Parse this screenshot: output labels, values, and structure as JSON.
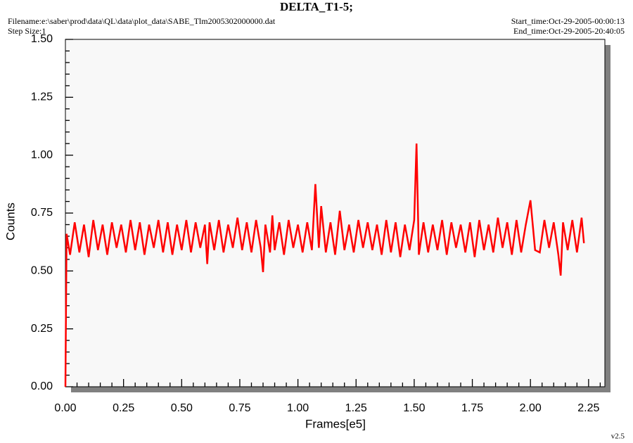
{
  "chart_data": {
    "type": "line",
    "title": "DELTA_T1-5;",
    "filename": "Filename:e:\\saber\\prod\\data\\QL\\data\\plot_data\\SABE_Tlm2005302000000.dat",
    "step_size": "Step Size:1",
    "start_time": "Start_time:Oct-29-2005-00:00:13",
    "end_time": "End_time:Oct-29-2005-20:40:05",
    "version": "v2.5",
    "xlabel": "Frames[e5]",
    "ylabel": "Counts",
    "xlim": [
      0,
      2.32
    ],
    "ylim": [
      0,
      1.5
    ],
    "xticks": [
      {
        "value": 0,
        "label": "0.00"
      },
      {
        "value": 0.25,
        "label": "0.25"
      },
      {
        "value": 0.5,
        "label": "0.50"
      },
      {
        "value": 0.75,
        "label": "0.75"
      },
      {
        "value": 1,
        "label": "1.00"
      },
      {
        "value": 1.25,
        "label": "1.25"
      },
      {
        "value": 1.5,
        "label": "1.50"
      },
      {
        "value": 1.75,
        "label": "1.75"
      },
      {
        "value": 2,
        "label": "2.00"
      },
      {
        "value": 2.25,
        "label": "2.25"
      }
    ],
    "yticks": [
      {
        "value": 0,
        "label": "0.00"
      },
      {
        "value": 0.25,
        "label": "0.25"
      },
      {
        "value": 0.5,
        "label": "0.50"
      },
      {
        "value": 0.75,
        "label": "0.75"
      },
      {
        "value": 1,
        "label": "1.00"
      },
      {
        "value": 1.25,
        "label": "1.25"
      },
      {
        "value": 1.5,
        "label": "1.50"
      }
    ],
    "color": "#ff0000",
    "x": [
      0,
      0.005,
      0.02,
      0.04,
      0.06,
      0.08,
      0.1,
      0.12,
      0.14,
      0.16,
      0.18,
      0.2,
      0.22,
      0.24,
      0.26,
      0.28,
      0.3,
      0.32,
      0.34,
      0.36,
      0.38,
      0.4,
      0.42,
      0.44,
      0.46,
      0.48,
      0.5,
      0.52,
      0.54,
      0.56,
      0.58,
      0.6,
      0.61,
      0.62,
      0.64,
      0.66,
      0.68,
      0.7,
      0.72,
      0.74,
      0.76,
      0.78,
      0.8,
      0.82,
      0.84,
      0.85,
      0.86,
      0.88,
      0.89,
      0.9,
      0.92,
      0.94,
      0.96,
      0.98,
      1.0,
      1.02,
      1.04,
      1.06,
      1.075,
      1.09,
      1.1,
      1.12,
      1.14,
      1.16,
      1.18,
      1.2,
      1.22,
      1.24,
      1.26,
      1.28,
      1.3,
      1.32,
      1.34,
      1.36,
      1.38,
      1.4,
      1.42,
      1.44,
      1.46,
      1.48,
      1.5,
      1.51,
      1.52,
      1.54,
      1.56,
      1.58,
      1.6,
      1.62,
      1.64,
      1.66,
      1.68,
      1.7,
      1.72,
      1.74,
      1.76,
      1.78,
      1.8,
      1.82,
      1.84,
      1.86,
      1.88,
      1.9,
      1.92,
      1.94,
      1.96,
      1.98,
      2.0,
      2.02,
      2.04,
      2.06,
      2.08,
      2.1,
      2.12,
      2.13,
      2.14,
      2.16,
      2.18,
      2.2,
      2.22,
      2.23
    ],
    "values": [
      0,
      0.66,
      0.57,
      0.71,
      0.58,
      0.7,
      0.56,
      0.72,
      0.59,
      0.7,
      0.57,
      0.71,
      0.6,
      0.7,
      0.58,
      0.72,
      0.59,
      0.71,
      0.57,
      0.7,
      0.6,
      0.72,
      0.58,
      0.71,
      0.57,
      0.7,
      0.59,
      0.72,
      0.58,
      0.71,
      0.6,
      0.7,
      0.53,
      0.71,
      0.59,
      0.72,
      0.58,
      0.7,
      0.6,
      0.73,
      0.59,
      0.71,
      0.58,
      0.72,
      0.6,
      0.495,
      0.7,
      0.58,
      0.74,
      0.59,
      0.71,
      0.57,
      0.72,
      0.6,
      0.7,
      0.58,
      0.71,
      0.59,
      0.875,
      0.6,
      0.78,
      0.58,
      0.71,
      0.57,
      0.76,
      0.59,
      0.7,
      0.58,
      0.72,
      0.6,
      0.71,
      0.59,
      0.7,
      0.57,
      0.72,
      0.58,
      0.71,
      0.56,
      0.7,
      0.59,
      0.72,
      1.05,
      0.57,
      0.71,
      0.58,
      0.7,
      0.59,
      0.72,
      0.57,
      0.71,
      0.6,
      0.7,
      0.58,
      0.71,
      0.56,
      0.72,
      0.59,
      0.7,
      0.58,
      0.73,
      0.6,
      0.71,
      0.57,
      0.72,
      0.58,
      0.7,
      0.805,
      0.59,
      0.58,
      0.72,
      0.6,
      0.71,
      0.57,
      0.48,
      0.71,
      0.59,
      0.72,
      0.58,
      0.73,
      0.62
    ]
  }
}
